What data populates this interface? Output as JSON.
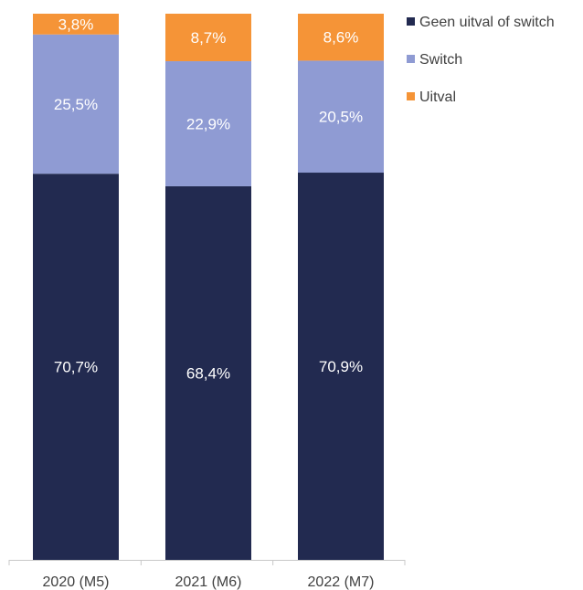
{
  "chart_data": {
    "type": "bar",
    "stacked": true,
    "categories": [
      "2020 (M5)",
      "2021 (M6)",
      "2022 (M7)"
    ],
    "series": [
      {
        "name": "Geen uitval of switch",
        "color": "#222a50",
        "values": [
          70.7,
          68.4,
          70.9
        ],
        "labels": [
          "70,7%",
          "68,4%",
          "70,9%"
        ]
      },
      {
        "name": "Switch",
        "color": "#8f9bd3",
        "values": [
          25.5,
          22.9,
          20.5
        ],
        "labels": [
          "25,5%",
          "22,9%",
          "20,5%"
        ]
      },
      {
        "name": "Uitval",
        "color": "#f59437",
        "values": [
          3.8,
          8.7,
          8.6
        ],
        "labels": [
          "3,8%",
          "8,7%",
          "8,6%"
        ]
      }
    ],
    "ylim": [
      0,
      100
    ],
    "title": "",
    "xlabel": "",
    "ylabel": "",
    "grid": false,
    "legend": "top-right"
  }
}
